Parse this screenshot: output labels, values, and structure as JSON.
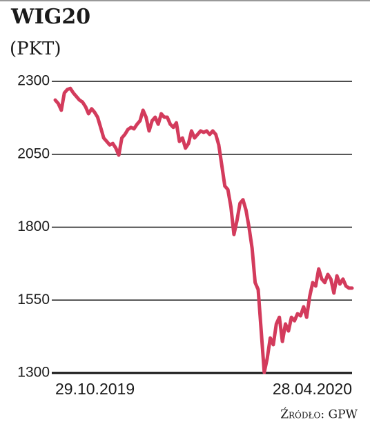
{
  "chart_data": {
    "type": "line",
    "title": "WIG20",
    "subtitle": "(PKT)",
    "source": "Źródło: GPW",
    "categories": [
      "29.10.2019",
      null,
      null,
      null,
      null,
      null,
      null,
      null,
      null,
      null,
      null,
      null,
      null,
      null,
      null,
      null,
      null,
      null,
      null,
      null,
      null,
      null,
      null,
      null,
      null,
      null,
      null,
      null,
      null,
      null,
      null,
      null,
      null,
      null,
      null,
      null,
      null,
      null,
      null,
      null,
      null,
      null,
      null,
      null,
      null,
      null,
      null,
      null,
      null,
      null,
      null,
      null,
      null,
      null,
      null,
      null,
      null,
      null,
      null,
      null,
      null,
      null,
      null,
      null,
      null,
      null,
      null,
      null,
      null,
      null,
      null,
      null,
      null,
      null,
      null,
      null,
      null,
      null,
      null,
      null,
      null,
      null,
      null,
      null,
      null,
      null,
      null,
      null,
      null,
      null,
      null,
      null,
      null,
      null,
      null,
      null,
      null,
      null,
      "28.04.2020"
    ],
    "series": [
      {
        "name": "WIG20",
        "color": "#d33b5c",
        "values": [
          2236,
          2224,
          2201,
          2260,
          2272,
          2276,
          2260,
          2248,
          2236,
          2229,
          2213,
          2189,
          2206,
          2194,
          2177,
          2142,
          2106,
          2094,
          2082,
          2087,
          2071,
          2047,
          2106,
          2118,
          2135,
          2142,
          2137,
          2153,
          2165,
          2201,
          2177,
          2130,
          2165,
          2177,
          2153,
          2189,
          2177,
          2177,
          2153,
          2142,
          2158,
          2094,
          2106,
          2071,
          2087,
          2130,
          2106,
          2118,
          2130,
          2125,
          2130,
          2118,
          2130,
          2118,
          2082,
          2012,
          1941,
          1929,
          1870,
          1775,
          1823,
          1882,
          1894,
          1858,
          1799,
          1728,
          1610,
          1586,
          1444,
          1302,
          1350,
          1420,
          1397,
          1468,
          1491,
          1408,
          1468,
          1444,
          1491,
          1479,
          1503,
          1496,
          1527,
          1491,
          1562,
          1610,
          1598,
          1657,
          1622,
          1610,
          1638,
          1622,
          1574,
          1633,
          1605,
          1622,
          1598,
          1591,
          1591
        ]
      }
    ],
    "ylim": [
      1300,
      2300
    ],
    "yticks": [
      1300,
      1550,
      1800,
      2050,
      2300
    ],
    "grid": true
  }
}
